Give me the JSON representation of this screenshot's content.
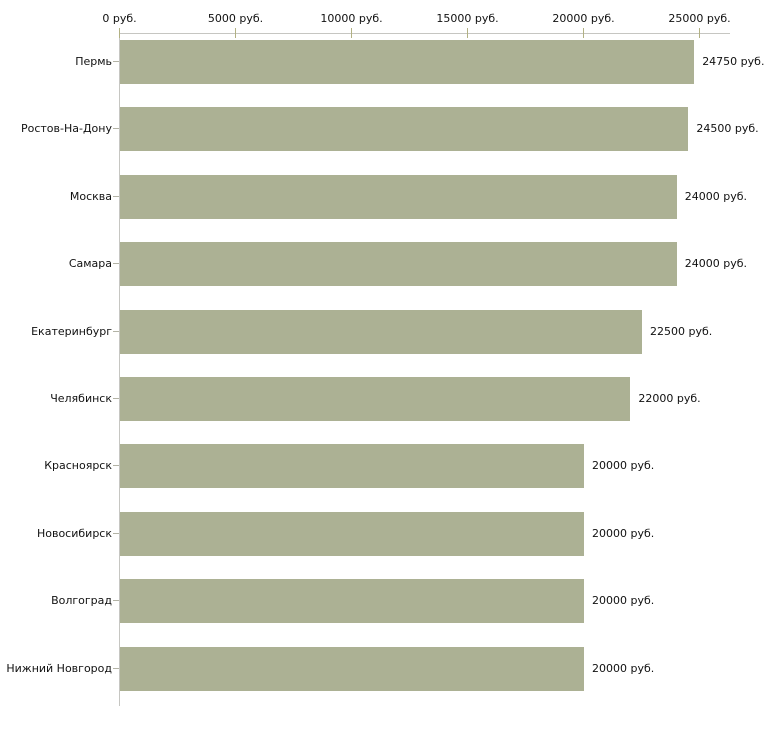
{
  "chart_data": {
    "type": "bar",
    "orientation": "horizontal",
    "title": "",
    "categories": [
      "Пермь",
      "Ростов-На-Дону",
      "Москва",
      "Самара",
      "Екатеринбург",
      "Челябинск",
      "Красноярск",
      "Новосибирск",
      "Волгоград",
      "Нижний Новгород"
    ],
    "values": [
      24750,
      24500,
      24000,
      24000,
      22500,
      22000,
      20000,
      20000,
      20000,
      20000
    ],
    "value_labels": [
      "24750 руб.",
      "24500 руб.",
      "24000 руб.",
      "24000 руб.",
      "22500 руб.",
      "22000 руб.",
      "20000 руб.",
      "20000 руб.",
      "20000 руб.",
      "20000 руб."
    ],
    "x_axis": {
      "position": "top",
      "unit": "руб.",
      "ticks": [
        0,
        5000,
        10000,
        15000,
        20000,
        25000
      ],
      "tick_labels": [
        "0 руб.",
        "5000 руб.",
        "10000 руб.",
        "15000 руб.",
        "20000 руб.",
        "25000 руб."
      ],
      "range": [
        0,
        26300
      ]
    },
    "grid": false,
    "legend": false,
    "colors": {
      "bar": "#acb194",
      "axis_line": "#c6c6c2",
      "axis_tick": "#b2b183",
      "category_tick": "#b3b3a6",
      "text": "#111111",
      "background": "#ffffff"
    }
  }
}
